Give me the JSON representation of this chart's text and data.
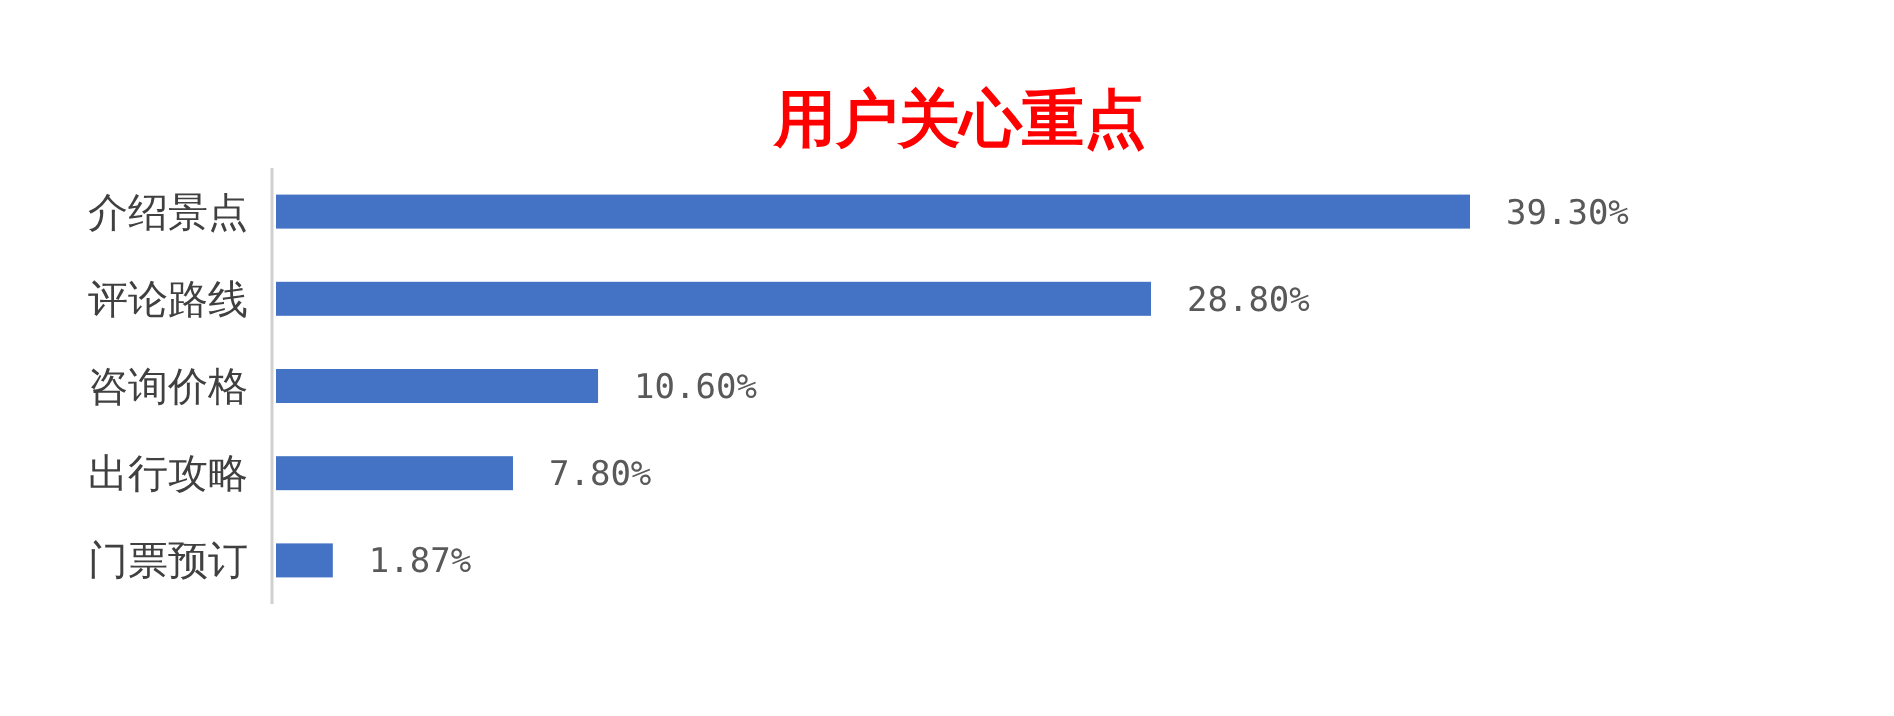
{
  "chart_data": {
    "type": "bar",
    "orientation": "horizontal",
    "title": "用户关心重点",
    "categories": [
      "介绍景点",
      "评论路线",
      "咨询价格",
      "出行攻略",
      "门票预订"
    ],
    "values": [
      39.3,
      28.8,
      10.6,
      7.8,
      1.87
    ],
    "value_labels": [
      "39.30%",
      "28.80%",
      "10.60%",
      "7.80%",
      "1.87%"
    ],
    "color": "#4472c4"
  }
}
